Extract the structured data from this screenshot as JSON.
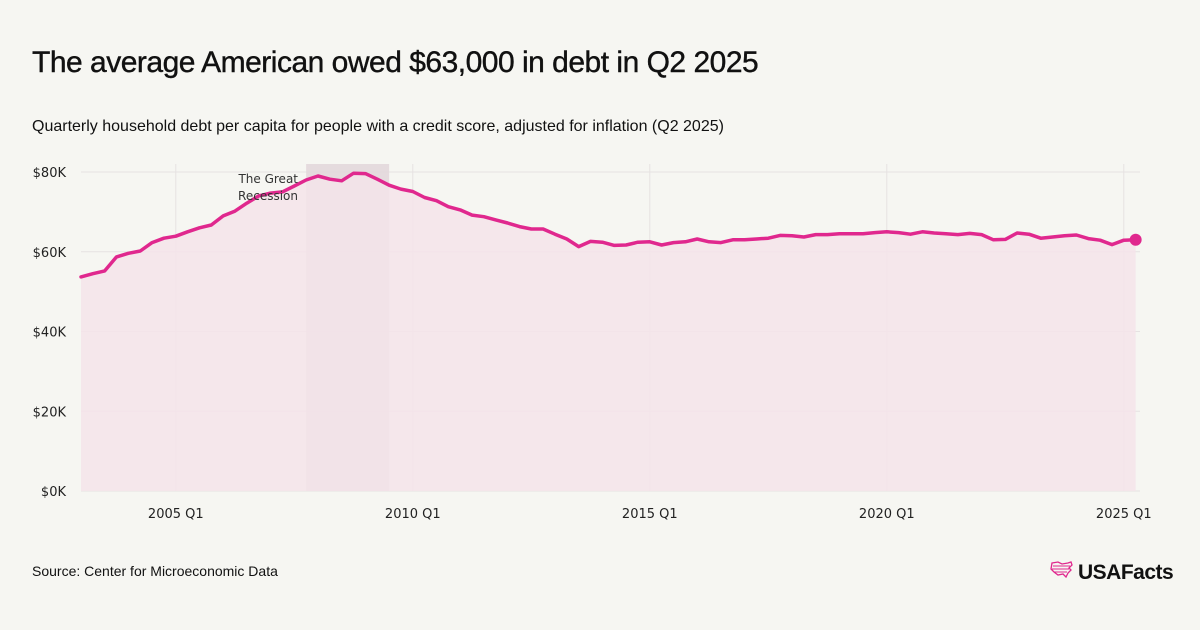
{
  "header": {
    "title": "The average American owed $63,000 in debt in Q2 2025",
    "subtitle": "Quarterly household debt per capita for people with a credit score, adjusted for inflation (Q2 2025)"
  },
  "footer": {
    "source": "Source: Center for Microeconomic Data",
    "logo_text": "USAFacts",
    "logo_icon": "us-map-icon"
  },
  "colors": {
    "line": "#e0288e",
    "area": "#f4e4ea",
    "recession": "#e2d6da",
    "grid": "#e6e2e2",
    "background": "#f6f6f2"
  },
  "chart_data": {
    "type": "area",
    "title": "The average American owed $63,000 in debt in Q2 2025",
    "subtitle": "Quarterly household debt per capita for people with a credit score, adjusted for inflation (Q2 2025)",
    "xlabel": "",
    "ylabel": "",
    "x_start": "2003 Q1",
    "x_end": "2025 Q2",
    "ylim": [
      0,
      80000
    ],
    "yticks": [
      0,
      20000,
      40000,
      60000,
      80000
    ],
    "ytick_labels": [
      "$0K",
      "$20K",
      "$40K",
      "$60K",
      "$80K"
    ],
    "xticks": [
      "2005 Q1",
      "2010 Q1",
      "2015 Q1",
      "2020 Q1",
      "2025 Q1"
    ],
    "grid": true,
    "legend": "none",
    "annotations": [
      {
        "type": "shaded_region",
        "label": "The Great Recession",
        "from": "2007 Q4",
        "to": "2009 Q3"
      }
    ],
    "end_marker": {
      "label": "2025 Q2",
      "value": 63000
    },
    "series": [
      {
        "name": "Household debt per capita",
        "x": [
          "2003 Q1",
          "2003 Q2",
          "2003 Q3",
          "2003 Q4",
          "2004 Q1",
          "2004 Q2",
          "2004 Q3",
          "2004 Q4",
          "2005 Q1",
          "2005 Q2",
          "2005 Q3",
          "2005 Q4",
          "2006 Q1",
          "2006 Q2",
          "2006 Q3",
          "2006 Q4",
          "2007 Q1",
          "2007 Q2",
          "2007 Q3",
          "2007 Q4",
          "2008 Q1",
          "2008 Q2",
          "2008 Q3",
          "2008 Q4",
          "2009 Q1",
          "2009 Q2",
          "2009 Q3",
          "2009 Q4",
          "2010 Q1",
          "2010 Q2",
          "2010 Q3",
          "2010 Q4",
          "2011 Q1",
          "2011 Q2",
          "2011 Q3",
          "2011 Q4",
          "2012 Q1",
          "2012 Q2",
          "2012 Q3",
          "2012 Q4",
          "2013 Q1",
          "2013 Q2",
          "2013 Q3",
          "2013 Q4",
          "2014 Q1",
          "2014 Q2",
          "2014 Q3",
          "2014 Q4",
          "2015 Q1",
          "2015 Q2",
          "2015 Q3",
          "2015 Q4",
          "2016 Q1",
          "2016 Q2",
          "2016 Q3",
          "2016 Q4",
          "2017 Q1",
          "2017 Q2",
          "2017 Q3",
          "2017 Q4",
          "2018 Q1",
          "2018 Q2",
          "2018 Q3",
          "2018 Q4",
          "2019 Q1",
          "2019 Q2",
          "2019 Q3",
          "2019 Q4",
          "2020 Q1",
          "2020 Q2",
          "2020 Q3",
          "2020 Q4",
          "2021 Q1",
          "2021 Q2",
          "2021 Q3",
          "2021 Q4",
          "2022 Q1",
          "2022 Q2",
          "2022 Q3",
          "2022 Q4",
          "2023 Q1",
          "2023 Q2",
          "2023 Q3",
          "2023 Q4",
          "2024 Q1",
          "2024 Q2",
          "2024 Q3",
          "2024 Q4",
          "2025 Q1",
          "2025 Q2"
        ],
        "values": [
          53700,
          54500,
          55200,
          58700,
          59600,
          60200,
          62300,
          63400,
          63900,
          65000,
          66000,
          66700,
          69000,
          70200,
          72200,
          74000,
          74700,
          75000,
          76500,
          78000,
          79000,
          78200,
          77800,
          79700,
          79600,
          78200,
          76700,
          75700,
          75100,
          73600,
          72800,
          71300,
          70500,
          69200,
          68800,
          68000,
          67200,
          66300,
          65700,
          65700,
          64400,
          63200,
          61300,
          62600,
          62400,
          61600,
          61700,
          62400,
          62500,
          61700,
          62300,
          62500,
          63200,
          62500,
          62300,
          63000,
          63000,
          63200,
          63400,
          64100,
          64000,
          63700,
          64300,
          64300,
          64500,
          64500,
          64500,
          64800,
          65000,
          64800,
          64400,
          65000,
          64700,
          64500,
          64300,
          64600,
          64300,
          63000,
          63100,
          64700,
          64400,
          63400,
          63700,
          64000,
          64200,
          63300,
          62900,
          61800,
          62900,
          63000
        ]
      }
    ]
  }
}
